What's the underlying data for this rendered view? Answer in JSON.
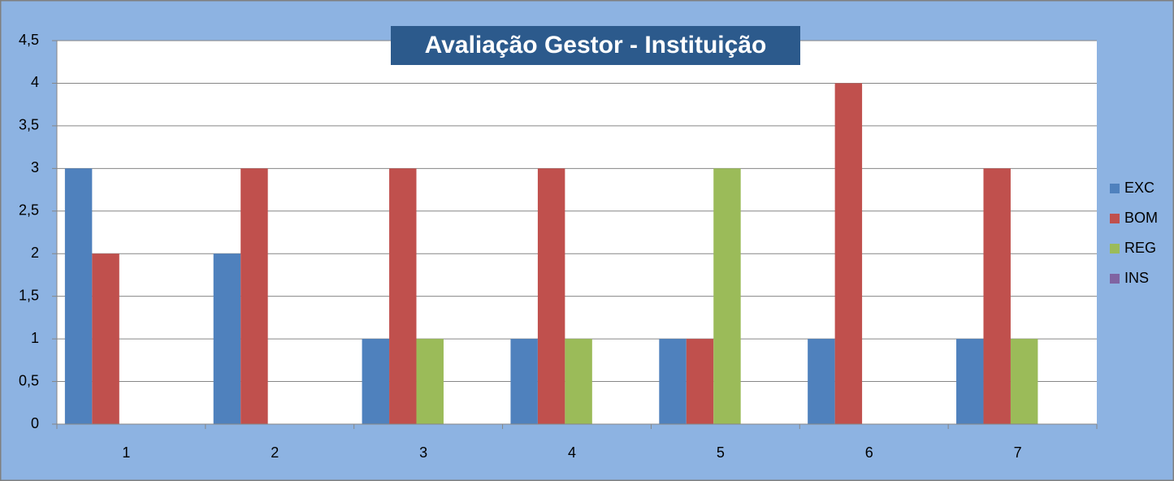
{
  "chart_data": {
    "type": "bar",
    "title": "Avaliação Gestor - Instituição",
    "categories": [
      "1",
      "2",
      "3",
      "4",
      "5",
      "6",
      "7"
    ],
    "series": [
      {
        "name": "EXC",
        "color": "#4f81bd",
        "values": [
          3,
          2,
          1,
          1,
          1,
          1,
          1
        ]
      },
      {
        "name": "BOM",
        "color": "#c0504d",
        "values": [
          2,
          3,
          3,
          3,
          1,
          4,
          3
        ]
      },
      {
        "name": "REG",
        "color": "#9bbb59",
        "values": [
          0,
          0,
          1,
          1,
          3,
          0,
          1
        ]
      },
      {
        "name": "INS",
        "color": "#8064a2",
        "values": [
          0,
          0,
          0,
          0,
          0,
          0,
          0
        ]
      }
    ],
    "ylim": [
      0,
      4.5
    ],
    "yticks": [
      0,
      {
        "value": 0.5,
        "label": "0,5"
      },
      1,
      {
        "value": 1.5,
        "label": "1,5"
      },
      2,
      {
        "value": 2.5,
        "label": "2,5"
      },
      3,
      {
        "value": 3.5,
        "label": "3,5"
      },
      4,
      {
        "value": 4.5,
        "label": "4,5"
      }
    ],
    "grid": true,
    "legend": "right"
  }
}
